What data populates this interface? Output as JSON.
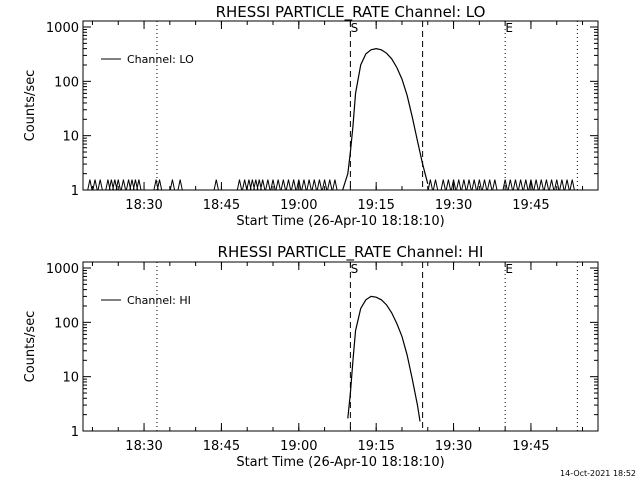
{
  "footer_timestamp": "14-Oct-2021 18:52",
  "chart_data": [
    {
      "type": "line",
      "title": "RHESSI PARTICLE_RATE Channel: LO",
      "xlabel": "Start Time (26-Apr-10 18:18:10)",
      "ylabel": "Counts/sec",
      "yscale": "log",
      "ylim": [
        1,
        1000
      ],
      "xlim": [
        "18:18:10",
        "19:58:00"
      ],
      "x_ticks": [
        "18:30",
        "18:45",
        "19:00",
        "19:15",
        "19:30",
        "19:45"
      ],
      "y_ticks": [
        "1",
        "10",
        "100",
        "1000"
      ],
      "legend": {
        "entries": [
          "Channel: LO"
        ],
        "position": "top-left"
      },
      "markers": [
        {
          "label": "S",
          "time": "19:10:00",
          "style": "dashed"
        },
        {
          "label": "",
          "time": "19:24:00",
          "style": "dashed"
        },
        {
          "label": "E",
          "time": "19:40:00",
          "style": "dotted"
        },
        {
          "label": "",
          "time": "18:32:30",
          "style": "dotted"
        },
        {
          "label": "",
          "time": "19:54:00",
          "style": "dotted"
        }
      ],
      "series": [
        {
          "name": "Channel: LO",
          "x": [
            "19:08:30",
            "19:09:30",
            "19:10:00",
            "19:10:30",
            "19:11:00",
            "19:12:00",
            "19:13:00",
            "19:14:00",
            "19:15:00",
            "19:16:00",
            "19:17:00",
            "19:18:00",
            "19:19:00",
            "19:20:00",
            "19:21:00",
            "19:22:00",
            "19:23:00",
            "19:24:00",
            "19:25:00"
          ],
          "y": [
            1,
            2,
            5,
            15,
            60,
            200,
            320,
            380,
            400,
            380,
            330,
            260,
            180,
            110,
            55,
            22,
            8,
            3,
            1.3
          ]
        }
      ],
      "noise_spikes": [
        "18:19:30",
        "18:20:30",
        "18:21:30",
        "18:23:00",
        "18:23:40",
        "18:24:20",
        "18:25:00",
        "18:26:00",
        "18:27:00",
        "18:27:40",
        "18:28:20",
        "18:29:00",
        "18:32:20",
        "18:33:00",
        "18:35:30",
        "18:37:00",
        "18:44:00",
        "18:48:30",
        "18:49:30",
        "18:50:20",
        "18:51:00",
        "18:51:40",
        "18:52:20",
        "18:53:00",
        "18:54:00",
        "18:55:00",
        "18:56:00",
        "18:57:00",
        "18:58:00",
        "18:59:00",
        "19:00:00",
        "19:01:00",
        "19:02:00",
        "19:03:00",
        "19:04:00",
        "19:05:00",
        "19:06:00",
        "19:07:00",
        "19:25:30",
        "19:26:30",
        "19:28:00",
        "19:29:00",
        "19:30:00",
        "19:31:00",
        "19:32:00",
        "19:33:00",
        "19:34:00",
        "19:35:00",
        "19:36:00",
        "19:37:00",
        "19:38:00",
        "19:40:00",
        "19:41:00",
        "19:42:00",
        "19:43:00",
        "19:44:00",
        "19:45:00",
        "19:46:00",
        "19:47:00",
        "19:48:00",
        "19:49:00",
        "19:50:00",
        "19:51:00",
        "19:52:00",
        "19:53:00"
      ]
    },
    {
      "type": "line",
      "title": "RHESSI PARTICLE_RATE Channel: HI",
      "xlabel": "Start Time (26-Apr-10 18:18:10)",
      "ylabel": "Counts/sec",
      "yscale": "log",
      "ylim": [
        1,
        1000
      ],
      "xlim": [
        "18:18:10",
        "19:58:00"
      ],
      "x_ticks": [
        "18:30",
        "18:45",
        "19:00",
        "19:15",
        "19:30",
        "19:45"
      ],
      "y_ticks": [
        "1",
        "10",
        "100",
        "1000"
      ],
      "legend": {
        "entries": [
          "Channel: HI"
        ],
        "position": "top-left"
      },
      "markers": [
        {
          "label": "S",
          "time": "19:10:00",
          "style": "dashed"
        },
        {
          "label": "",
          "time": "19:24:00",
          "style": "dashed"
        },
        {
          "label": "E",
          "time": "19:40:00",
          "style": "dotted"
        },
        {
          "label": "",
          "time": "18:32:30",
          "style": "dotted"
        },
        {
          "label": "",
          "time": "19:54:00",
          "style": "dotted"
        }
      ],
      "series": [
        {
          "name": "Channel: HI",
          "x": [
            "19:09:30",
            "19:10:00",
            "19:10:30",
            "19:11:00",
            "19:12:00",
            "19:13:00",
            "19:14:00",
            "19:15:00",
            "19:16:00",
            "19:17:00",
            "19:18:00",
            "19:19:00",
            "19:20:00",
            "19:21:00",
            "19:22:00",
            "19:23:00",
            "19:23:30"
          ],
          "y": [
            1.7,
            5,
            20,
            70,
            180,
            260,
            300,
            290,
            260,
            210,
            150,
            95,
            55,
            25,
            9,
            3,
            1.5
          ]
        }
      ]
    }
  ]
}
